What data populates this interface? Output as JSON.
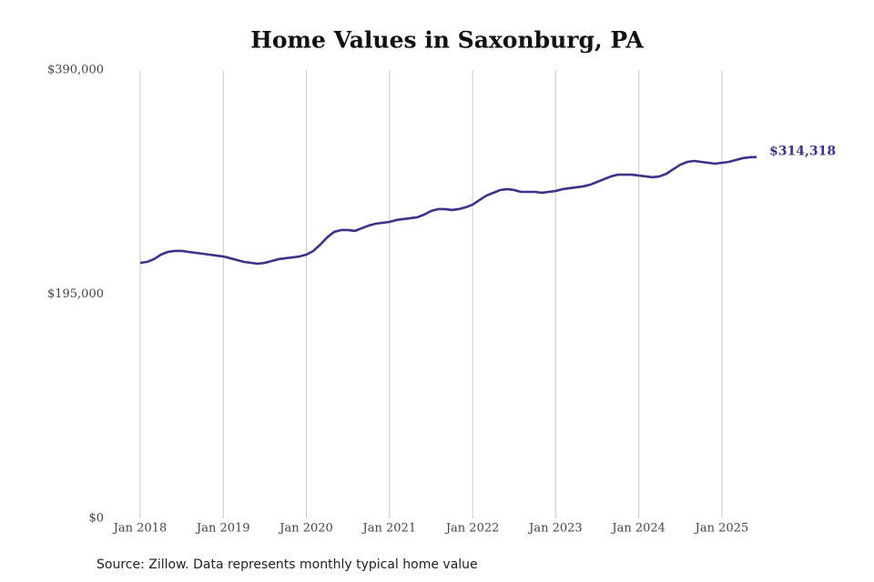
{
  "chart_data": {
    "type": "line",
    "title": "Home Values in Saxonburg, PA",
    "source": "Source: Zillow. Data represents monthly typical home value",
    "end_label": "$314,318",
    "x": [
      "2018-01",
      "2018-02",
      "2018-03",
      "2018-04",
      "2018-05",
      "2018-06",
      "2018-07",
      "2018-08",
      "2018-09",
      "2018-10",
      "2018-11",
      "2018-12",
      "2019-01",
      "2019-02",
      "2019-03",
      "2019-04",
      "2019-05",
      "2019-06",
      "2019-07",
      "2019-08",
      "2019-09",
      "2019-10",
      "2019-11",
      "2019-12",
      "2020-01",
      "2020-02",
      "2020-03",
      "2020-04",
      "2020-05",
      "2020-06",
      "2020-07",
      "2020-08",
      "2020-09",
      "2020-10",
      "2020-11",
      "2020-12",
      "2021-01",
      "2021-02",
      "2021-03",
      "2021-04",
      "2021-05",
      "2021-06",
      "2021-07",
      "2021-08",
      "2021-09",
      "2021-10",
      "2021-11",
      "2021-12",
      "2022-01",
      "2022-02",
      "2022-03",
      "2022-04",
      "2022-05",
      "2022-06",
      "2022-07",
      "2022-08",
      "2022-09",
      "2022-10",
      "2022-11",
      "2022-12",
      "2023-01",
      "2023-02",
      "2023-03",
      "2023-04",
      "2023-05",
      "2023-06",
      "2023-07",
      "2023-08",
      "2023-09",
      "2023-10",
      "2023-11",
      "2023-12",
      "2024-01",
      "2024-02",
      "2024-03",
      "2024-04",
      "2024-05",
      "2024-06",
      "2024-07",
      "2024-08",
      "2024-09",
      "2024-10",
      "2024-11",
      "2024-12",
      "2025-01",
      "2025-02",
      "2025-03",
      "2025-04",
      "2025-05",
      "2025-06"
    ],
    "series": [
      {
        "color": "#3d3189",
        "values": [
          222300,
          223100,
          225500,
          229400,
          231800,
          232600,
          232600,
          231800,
          231000,
          230200,
          229400,
          228600,
          227800,
          226300,
          224700,
          223100,
          222300,
          221500,
          222300,
          223900,
          225500,
          226300,
          227000,
          227800,
          229400,
          232600,
          238100,
          244400,
          249200,
          250800,
          250800,
          250000,
          252400,
          254700,
          256300,
          257100,
          257900,
          259500,
          260300,
          261100,
          261900,
          264200,
          267400,
          269000,
          269000,
          268200,
          269000,
          270600,
          272900,
          276900,
          280800,
          283200,
          285600,
          286400,
          285600,
          284000,
          284000,
          284000,
          283200,
          284000,
          284800,
          286400,
          287200,
          288000,
          288800,
          290300,
          292700,
          295100,
          297500,
          299000,
          299000,
          299000,
          298200,
          297500,
          296700,
          297500,
          299800,
          303800,
          307700,
          310100,
          310900,
          310100,
          309300,
          308500,
          309300,
          310100,
          311700,
          313300,
          314100,
          314318
        ]
      }
    ],
    "xlim": [
      "2018-01",
      "2025-06"
    ],
    "xticks": [
      {
        "value": "2018-01",
        "label": "Jan 2018"
      },
      {
        "value": "2019-01",
        "label": "Jan 2019"
      },
      {
        "value": "2020-01",
        "label": "Jan 2020"
      },
      {
        "value": "2021-01",
        "label": "Jan 2021"
      },
      {
        "value": "2022-01",
        "label": "Jan 2022"
      },
      {
        "value": "2023-01",
        "label": "Jan 2023"
      },
      {
        "value": "2024-01",
        "label": "Jan 2024"
      },
      {
        "value": "2025-01",
        "label": "Jan 2025"
      }
    ],
    "ylim": [
      0,
      390000
    ],
    "yticks": [
      {
        "value": 0,
        "label": "$0"
      },
      {
        "value": 195000,
        "label": "$195,000"
      },
      {
        "value": 390000,
        "label": "$390,000"
      }
    ],
    "grid": "x"
  }
}
